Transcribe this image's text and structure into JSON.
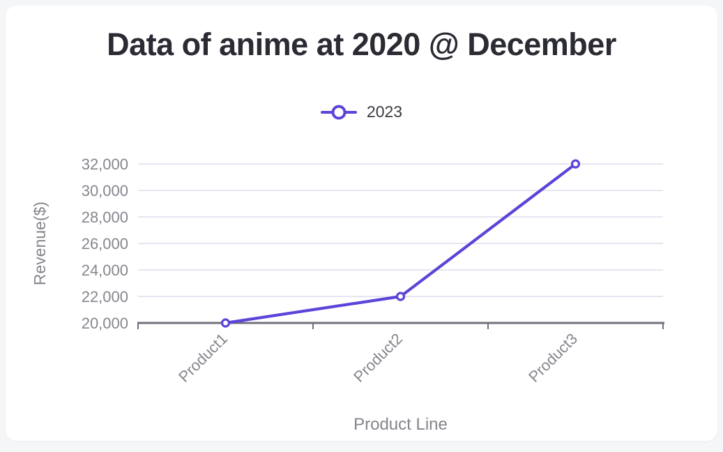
{
  "page": {
    "background": "#f5f6f8",
    "card_background": "#ffffff"
  },
  "legend": {
    "label": "2023",
    "marker_color": "#5a45d8"
  },
  "chart_data": {
    "type": "line",
    "title": "Data of anime at 2020 @ December",
    "categories": [
      "Product1",
      "Product2",
      "Product3"
    ],
    "series": [
      {
        "name": "2023",
        "values": [
          20000,
          22000,
          32000
        ],
        "color": "#5a45d8",
        "point_style": "hollow-circle"
      }
    ],
    "xlabel": "Product Line",
    "ylabel": "Revenue($)",
    "ylim": [
      20000,
      32000
    ],
    "ytick_step": 2000,
    "ytick_labels": [
      "20,000",
      "22,000",
      "24,000",
      "26,000",
      "28,000",
      "30,000",
      "32,000"
    ],
    "grid": true,
    "legend_position": "top",
    "colors": {
      "grid": "#e4e6f2",
      "axis": "#71717c",
      "tick_text": "#86868e",
      "axis_title_text": "#84848c",
      "title_text": "#2a2b33",
      "legend_text": "#3a3a41"
    }
  }
}
